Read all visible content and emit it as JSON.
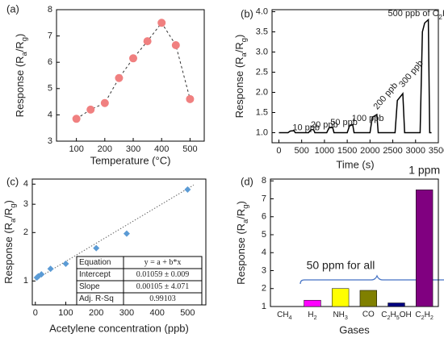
{
  "chart_data": [
    {
      "type": "scatter",
      "panel": "(a)",
      "color": "#f08080",
      "line_style": "dashed",
      "xlabel": "Temperature (°C)",
      "ylabel": [
        "Response (R",
        "a",
        "/R",
        "g",
        ")"
      ],
      "x": [
        100,
        150,
        200,
        250,
        300,
        350,
        400,
        450,
        500
      ],
      "values": [
        3.85,
        4.2,
        4.45,
        5.4,
        6.15,
        6.8,
        7.5,
        6.65,
        4.6
      ],
      "xlim": [
        30,
        550
      ],
      "xticks": [
        100,
        200,
        300,
        400,
        500
      ],
      "ylim": [
        3,
        8
      ],
      "yticks": [
        3,
        4,
        5,
        6,
        7,
        8
      ]
    },
    {
      "type": "line",
      "panel": "(b)",
      "color": "#000000",
      "xlabel": "Time (s)",
      "ylabel": [
        "Response (R",
        "a",
        "/R",
        "g",
        ")"
      ],
      "x": [
        0,
        200,
        250,
        330,
        360,
        650,
        700,
        760,
        790,
        1050,
        1100,
        1180,
        1210,
        1500,
        1550,
        1620,
        1650,
        2000,
        2050,
        2150,
        2180,
        2550,
        2600,
        2720,
        2760,
        3100,
        3150,
        3200,
        3280,
        3310,
        3350
      ],
      "values": [
        1.0,
        1.0,
        1.04,
        1.05,
        1.0,
        1.0,
        1.07,
        1.08,
        1.0,
        1.0,
        1.12,
        1.13,
        1.0,
        1.0,
        1.17,
        1.2,
        1.0,
        1.0,
        1.38,
        1.45,
        1.0,
        1.0,
        1.8,
        1.97,
        1.0,
        1.0,
        3.5,
        3.72,
        3.8,
        1.0,
        1.0
      ],
      "annotations": [
        "10 ppb",
        "20 ppb",
        "50 ppb",
        "100 ppb",
        "200 ppb",
        "300 ppb",
        [
          "500 ppb of C",
          "2",
          "H",
          "2"
        ]
      ],
      "xlim": [
        -150,
        3500
      ],
      "xticks": [
        0,
        500,
        1000,
        1500,
        2000,
        2500,
        3000,
        3500
      ],
      "ylim": [
        0.75,
        4.05
      ],
      "yticks": [
        {
          "value": 1,
          "label": "1.0"
        },
        1.5,
        {
          "value": 2,
          "label": "2.0"
        },
        2.5,
        {
          "value": 3,
          "label": "3.0"
        },
        3.5,
        {
          "value": 4,
          "label": "4.0"
        }
      ]
    },
    {
      "type": "scatter",
      "panel": "(c)",
      "color": "#5b9bd5",
      "marker": "diamond",
      "ylog": true,
      "xlabel": "Acetylene concentration (ppb)",
      "ylabel": [
        "Response (R",
        "a",
        "/R",
        "g",
        ")"
      ],
      "x": [
        5,
        10,
        20,
        50,
        100,
        200,
        300,
        500
      ],
      "values": [
        1.05,
        1.07,
        1.1,
        1.19,
        1.28,
        1.6,
        1.97,
        3.7
      ],
      "fit_line": {
        "x": [
          0,
          520
        ],
        "values": [
          1.02,
          3.95
        ]
      },
      "legend_table": [
        [
          "Equation",
          "y = a + b*x"
        ],
        [
          "Intercept",
          "0.01059 ± 0.009"
        ],
        [
          "Slope",
          "0.00105 ± 4.071"
        ],
        [
          "Adj. R-Sq",
          "0.99103"
        ]
      ],
      "xlim": [
        -10,
        560
      ],
      "xticks": [
        0,
        100,
        200,
        300,
        400,
        500
      ],
      "ylim": [
        0.71,
        4.3
      ],
      "yticks": [
        1,
        2,
        3,
        4
      ]
    },
    {
      "type": "bar",
      "panel": "(d)",
      "xlabel": "Gases",
      "ylabel": [
        "Response (R",
        "a",
        "/R",
        "g",
        ")"
      ],
      "categories": [
        [
          "CH",
          "4"
        ],
        [
          "H",
          "2"
        ],
        [
          "NH",
          "3"
        ],
        "CO",
        [
          "C",
          "2",
          "H",
          "5",
          "OH"
        ],
        [
          "C",
          "2",
          "H",
          "2"
        ]
      ],
      "values": [
        1.0,
        1.35,
        2.0,
        1.9,
        1.2,
        7.5
      ],
      "colors": [
        "#ffffff",
        "#ff00ff",
        "#ffff00",
        "#808000",
        "#000080",
        "#800080"
      ],
      "annotations": [
        "50 ppm for all",
        "1 ppm"
      ],
      "ylim": [
        1,
        8.1
      ],
      "yticks": [
        1,
        2,
        3,
        4,
        5,
        6,
        7,
        8
      ]
    }
  ]
}
